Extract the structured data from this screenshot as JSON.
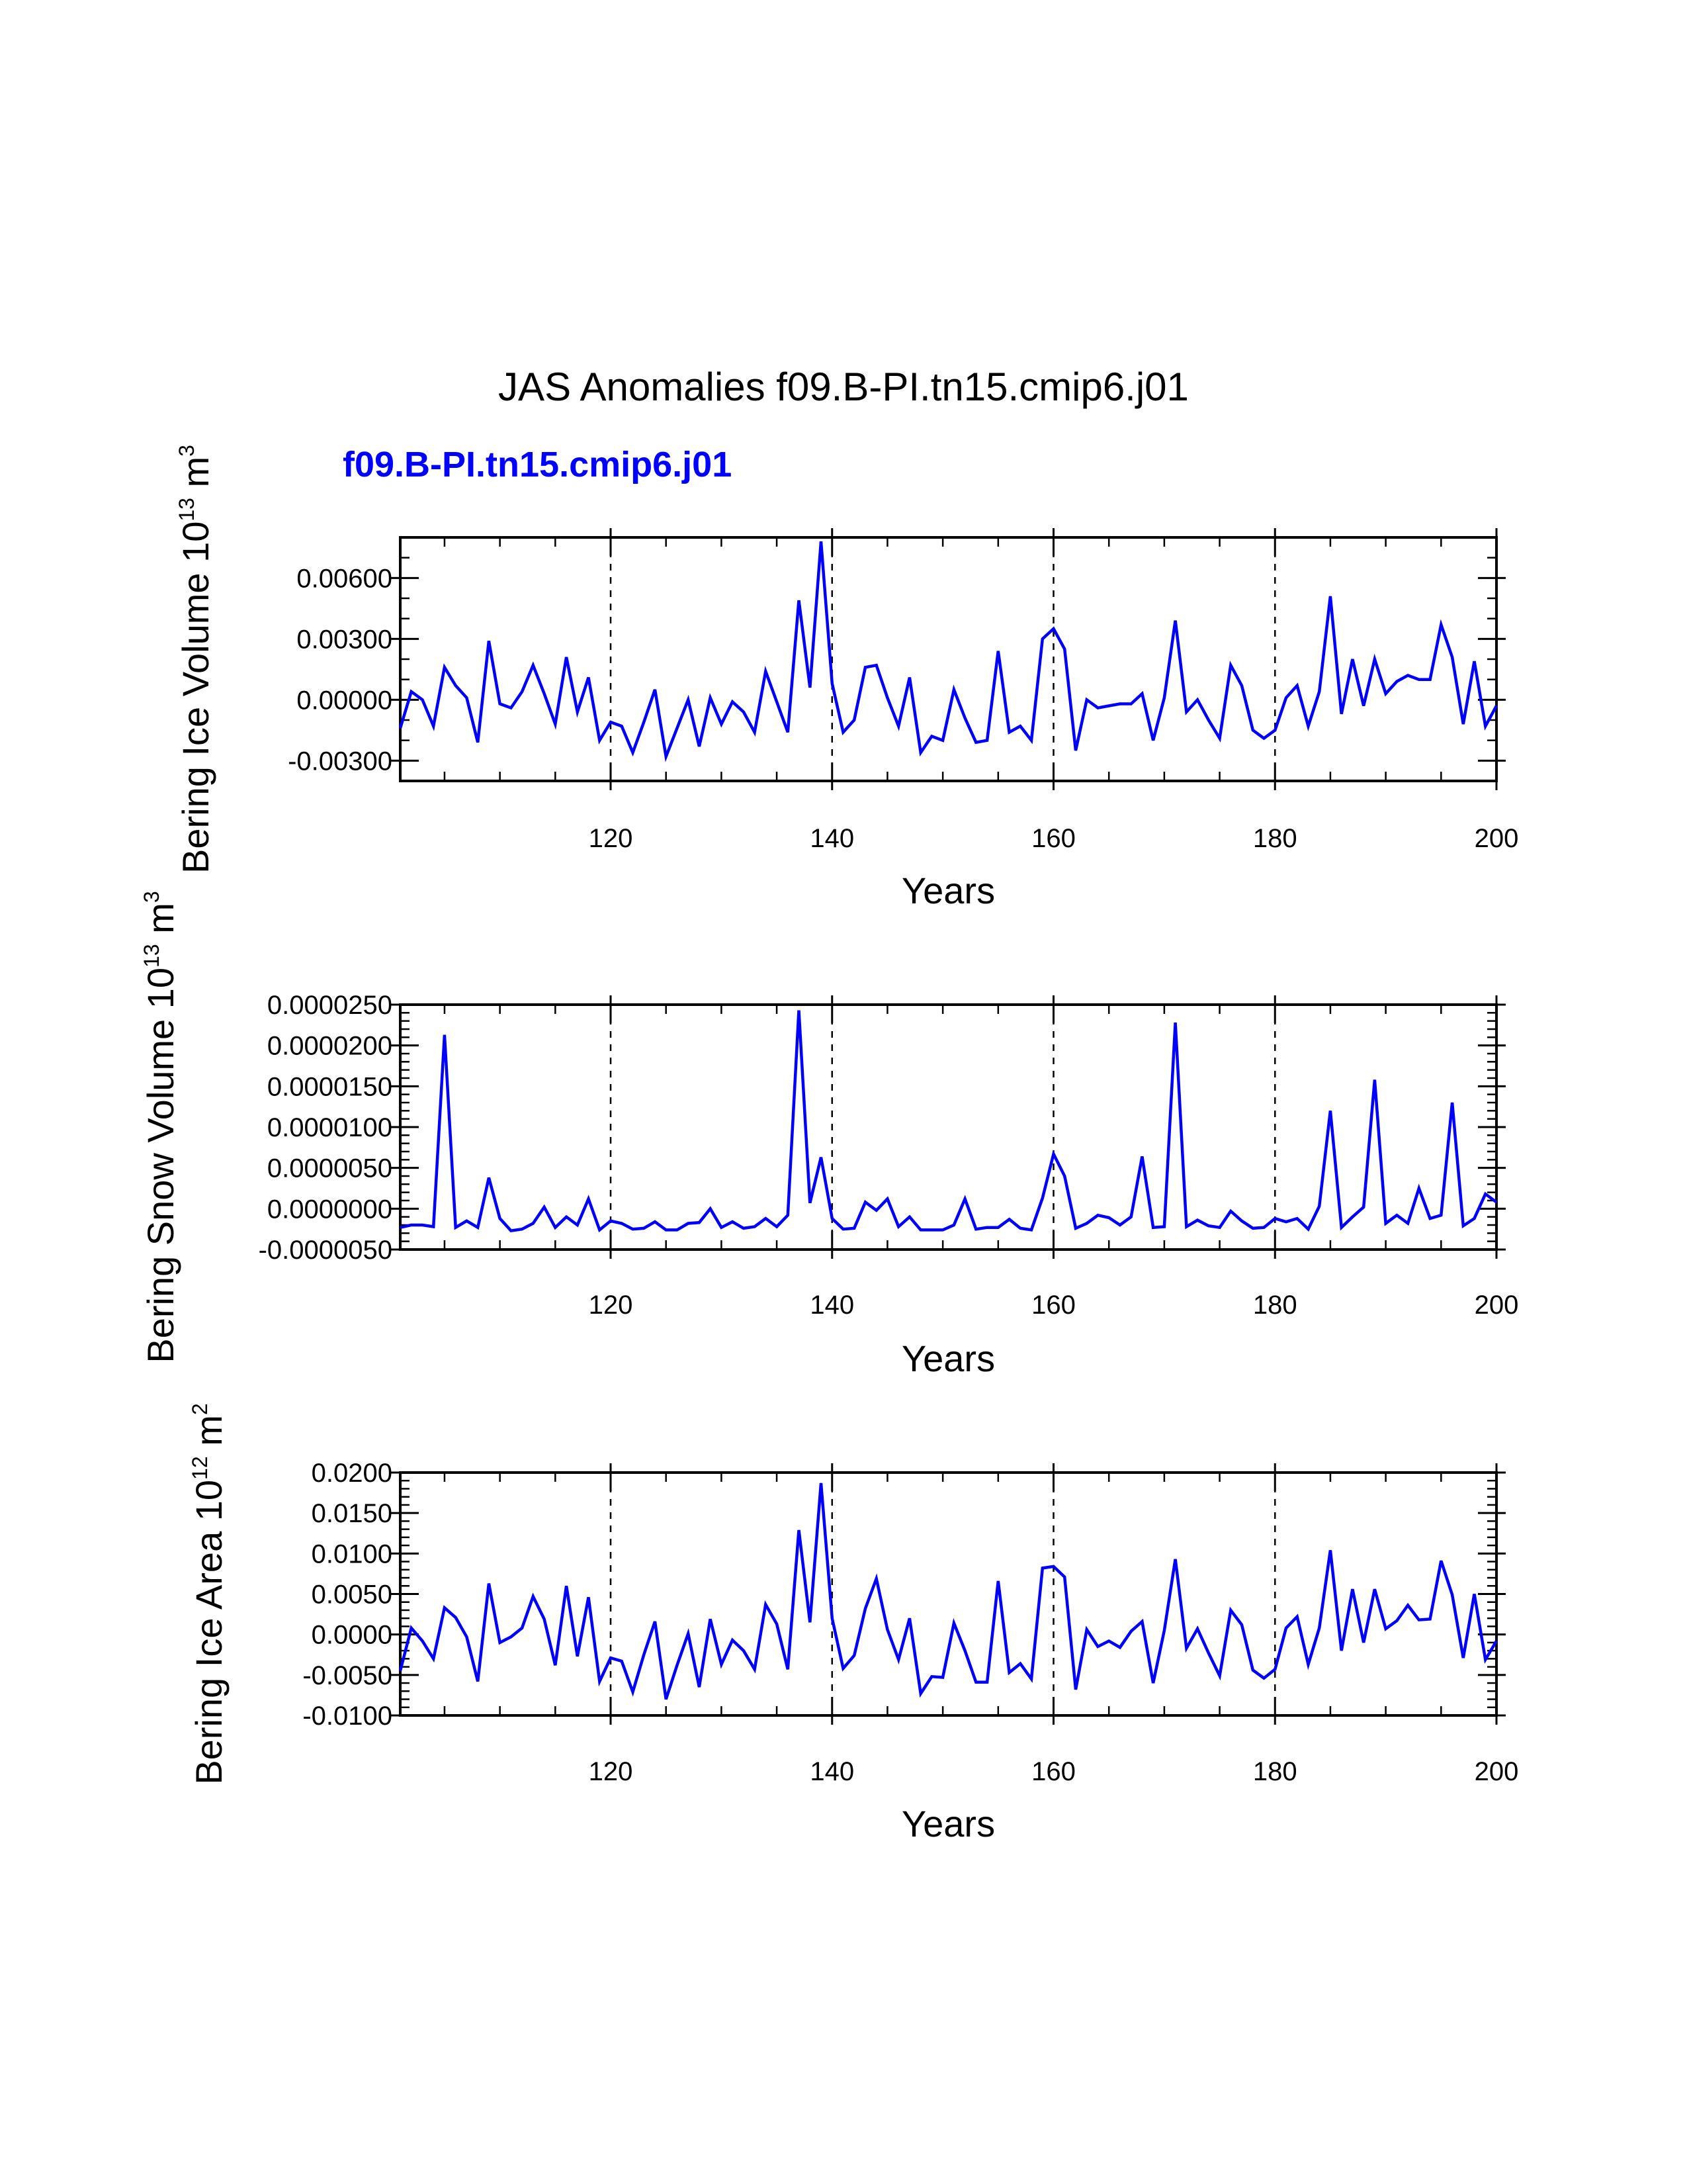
{
  "title": "JAS Anomalies f09.B-PI.tn15.cmip6.j01",
  "subtitle": "f09.B-PI.tn15.cmip6.j01",
  "colors": {
    "series": "#0000ff",
    "subtitle": "#0000ff",
    "axes": "#000000"
  },
  "chart_data": [
    {
      "type": "line",
      "name": "ice-volume",
      "xlabel": "Years",
      "ylabel": "Bering Ice Volume 10",
      "ylabel_exp": "13",
      "ylabel_unit": "m",
      "ylabel_unit_exp": "3",
      "xlim": [
        101,
        200
      ],
      "ylim": [
        -0.004,
        0.008
      ],
      "xticks": [
        120,
        140,
        160,
        180,
        200
      ],
      "yticks": [
        -0.003,
        0.0,
        0.003,
        0.006
      ],
      "ytick_labels": [
        "-0.00300",
        "0.00000",
        "0.00300",
        "0.00600"
      ],
      "ytick_minor": 0.001,
      "vlines": [
        120,
        140,
        160,
        180
      ],
      "x_start": 101,
      "series": [
        {
          "name": "f09.B-PI.tn15.cmip6.j01",
          "values": [
            -0.0014,
            0.0004,
            0.0,
            -0.0013,
            0.0016,
            0.0007,
            0.0001,
            -0.0021,
            0.0029,
            -0.0002,
            -0.0004,
            0.0004,
            0.0017,
            0.0003,
            -0.0012,
            0.0021,
            -0.0006,
            0.0011,
            -0.002,
            -0.0011,
            -0.0013,
            -0.0026,
            -0.0011,
            0.0005,
            -0.0028,
            -0.0014,
            0.0,
            -0.0023,
            0.0001,
            -0.0012,
            -0.0001,
            -0.0006,
            -0.0016,
            0.0014,
            -0.0001,
            -0.0016,
            0.0049,
            0.0006,
            0.0078,
            0.0008,
            -0.0016,
            -0.001,
            0.0016,
            0.0017,
            0.0001,
            -0.0013,
            0.0011,
            -0.0026,
            -0.0018,
            -0.002,
            0.0005,
            -0.0009,
            -0.0021,
            -0.002,
            0.0024,
            -0.0016,
            -0.0013,
            -0.002,
            0.003,
            0.0035,
            0.0025,
            -0.0025,
            0.0,
            -0.0004,
            -0.0003,
            -0.0002,
            -0.0002,
            0.0003,
            -0.002,
            0.0001,
            0.0039,
            -0.0006,
            0.0,
            -0.001,
            -0.0019,
            0.0017,
            0.0007,
            -0.0015,
            -0.0019,
            -0.0015,
            0.0001,
            0.0007,
            -0.0013,
            0.0004,
            0.0051,
            -0.0007,
            0.002,
            -0.0003,
            0.002,
            0.0003,
            0.0009,
            0.0012,
            0.001,
            0.001,
            0.0037,
            0.0021,
            -0.0012,
            0.0019,
            -0.0013,
            -0.0003
          ]
        }
      ]
    },
    {
      "type": "line",
      "name": "snow-volume",
      "xlabel": "Years",
      "ylabel": "Bering Snow Volume 10",
      "ylabel_exp": "13",
      "ylabel_unit": "m",
      "ylabel_unit_exp": "3",
      "xlim": [
        101,
        200
      ],
      "ylim": [
        -5e-06,
        2.5e-05
      ],
      "xticks": [
        120,
        140,
        160,
        180,
        200
      ],
      "yticks": [
        -5e-06,
        0.0,
        5e-06,
        1e-05,
        1.5e-05,
        2e-05,
        2.5e-05
      ],
      "ytick_labels": [
        "-0.0000050",
        "0.0000000",
        "0.0000050",
        "0.0000100",
        "0.0000150",
        "0.0000200",
        "0.0000250"
      ],
      "ytick_minor": 1e-06,
      "vlines": [
        120,
        140,
        160,
        180
      ],
      "x_start": 101,
      "series": [
        {
          "name": "f09.B-PI.tn15.cmip6.j01",
          "values": [
            -2.3e-06,
            -2e-06,
            -2e-06,
            -2.2e-06,
            2.13e-05,
            -2.3e-06,
            -1.5e-06,
            -2.3e-06,
            3.8e-06,
            -1.2e-06,
            -2.7e-06,
            -2.5e-06,
            -1.8e-06,
            2e-07,
            -2.3e-06,
            -1e-06,
            -2e-06,
            1.2e-06,
            -2.6e-06,
            -1.5e-06,
            -1.8e-06,
            -2.5e-06,
            -2.4e-06,
            -1.6e-06,
            -2.6e-06,
            -2.6e-06,
            -1.8e-06,
            -1.7e-06,
            0.0,
            -2.3e-06,
            -1.6e-06,
            -2.4e-06,
            -2.2e-06,
            -1.2e-06,
            -2.2e-06,
            -8e-07,
            2.43e-05,
            7e-07,
            6.3e-06,
            -1.2e-06,
            -2.5e-06,
            -2.4e-06,
            8e-07,
            -2e-07,
            1.2e-06,
            -2.2e-06,
            -1e-06,
            -2.6e-06,
            -2.6e-06,
            -2.6e-06,
            -2e-06,
            1.2e-06,
            -2.5e-06,
            -2.3e-06,
            -2.3e-06,
            -1.3e-06,
            -2.4e-06,
            -2.6e-06,
            1.3e-06,
            6.7e-06,
            4e-06,
            -2.4e-06,
            -1.8e-06,
            -8e-07,
            -1.1e-06,
            -2e-06,
            -1e-06,
            6.4e-06,
            -2.3e-06,
            -2.2e-06,
            2.28e-05,
            -2.2e-06,
            -1.4e-06,
            -2.1e-06,
            -2.3e-06,
            -3e-07,
            -1.5e-06,
            -2.4e-06,
            -2.3e-06,
            -1.2e-06,
            -1.6e-06,
            -1.2e-06,
            -2.5e-06,
            3e-07,
            1.2e-05,
            -2.3e-06,
            -1e-06,
            2e-07,
            1.58e-05,
            -1.8e-06,
            -8e-07,
            -1.8e-06,
            2.5e-06,
            -1.2e-06,
            -8e-07,
            1.3e-05,
            -2.1e-06,
            -1.2e-06,
            1.8e-06,
            8e-07
          ]
        }
      ]
    },
    {
      "type": "line",
      "name": "ice-area",
      "xlabel": "Years",
      "ylabel": "Bering Ice Area 10",
      "ylabel_exp": "12",
      "ylabel_unit": "m",
      "ylabel_unit_exp": "2",
      "xlim": [
        101,
        200
      ],
      "ylim": [
        -0.01,
        0.02
      ],
      "xticks": [
        120,
        140,
        160,
        180,
        200
      ],
      "yticks": [
        -0.01,
        -0.005,
        0.0,
        0.005,
        0.01,
        0.015,
        0.02
      ],
      "ytick_labels": [
        "-0.0100",
        "-0.0050",
        "0.0000",
        "0.0050",
        "0.0100",
        "0.0150",
        "0.0200"
      ],
      "ytick_minor": 0.001,
      "vlines": [
        120,
        140,
        160,
        180
      ],
      "x_start": 101,
      "series": [
        {
          "name": "f09.B-PI.tn15.cmip6.j01",
          "values": [
            -0.0045,
            0.0008,
            -0.0008,
            -0.003,
            0.0033,
            0.0021,
            -0.0003,
            -0.0058,
            0.0063,
            -0.001,
            -0.0003,
            0.0008,
            0.0047,
            0.0019,
            -0.0038,
            0.006,
            -0.0027,
            0.0046,
            -0.0058,
            -0.0029,
            -0.0033,
            -0.0071,
            -0.0025,
            0.0016,
            -0.008,
            -0.0038,
            0.0001,
            -0.0065,
            0.0019,
            -0.0037,
            -0.0007,
            -0.002,
            -0.0043,
            0.0037,
            0.0013,
            -0.0043,
            0.0129,
            0.0015,
            0.0187,
            0.002,
            -0.0042,
            -0.0026,
            0.0032,
            0.0069,
            0.0006,
            -0.0031,
            0.002,
            -0.0073,
            -0.0052,
            -0.0053,
            0.0014,
            -0.002,
            -0.0059,
            -0.0059,
            0.0066,
            -0.0047,
            -0.0036,
            -0.0055,
            0.0082,
            0.0084,
            0.0071,
            -0.0068,
            0.0006,
            -0.0015,
            -0.0008,
            -0.0016,
            0.0004,
            0.0016,
            -0.006,
            0.0005,
            0.0093,
            -0.0017,
            0.0007,
            -0.0023,
            -0.0051,
            0.003,
            0.0012,
            -0.0044,
            -0.0054,
            -0.0043,
            0.0008,
            0.0022,
            -0.0037,
            0.0008,
            0.0104,
            -0.002,
            0.0056,
            -0.001,
            0.0056,
            0.0007,
            0.0017,
            0.0036,
            0.0018,
            0.0019,
            0.0091,
            0.0049,
            -0.0029,
            0.005,
            -0.0031,
            -0.0008
          ]
        }
      ]
    }
  ]
}
